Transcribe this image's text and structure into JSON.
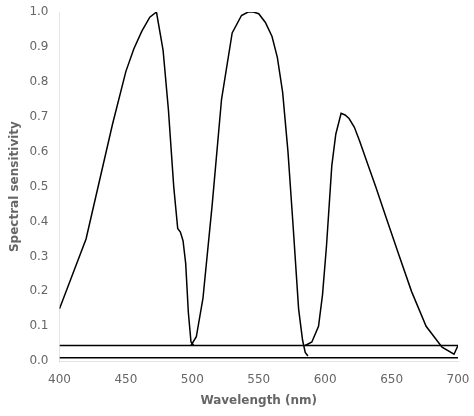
{
  "chart_data": {
    "type": "line",
    "xlabel": "Wavelength (nm)",
    "ylabel": "Spectral sensitivity",
    "xlim": [
      400,
      700
    ],
    "ylim": [
      0,
      1.0
    ],
    "xticks": [
      400,
      450,
      500,
      550,
      600,
      650,
      700
    ],
    "yticks": [
      {
        "value": 0,
        "label": "0.0"
      },
      0.1,
      0.2,
      0.3,
      0.4,
      0.5,
      0.6,
      0.7,
      0.8,
      0.9,
      {
        "value": 1,
        "label": "1.0"
      }
    ],
    "grid": false,
    "series": [
      {
        "color": "#000000",
        "x": [
          400,
          700
        ],
        "values": [
          0.045,
          0.045
        ]
      },
      {
        "color": "#000000",
        "x": [
          400,
          700
        ],
        "values": [
          0.01,
          0.01
        ]
      },
      {
        "color": "#000000",
        "x": [
          400,
          420,
          440,
          450,
          456,
          462,
          468,
          473,
          478,
          482,
          486,
          489,
          491,
          493,
          495,
          497,
          499,
          501
        ],
        "values": [
          0.15,
          0.35,
          0.68,
          0.83,
          0.895,
          0.945,
          0.985,
          1.0,
          0.89,
          0.72,
          0.5,
          0.38,
          0.37,
          0.345,
          0.28,
          0.14,
          0.055,
          0.045
        ]
      },
      {
        "color": "#000000",
        "x": [
          499,
          503,
          508,
          515,
          522,
          530,
          537,
          542,
          546,
          550,
          555,
          560,
          564,
          568,
          572,
          576,
          580,
          583,
          585,
          587
        ],
        "values": [
          0.045,
          0.07,
          0.18,
          0.45,
          0.75,
          0.94,
          0.99,
          1.0,
          1.0,
          0.995,
          0.97,
          0.93,
          0.87,
          0.77,
          0.6,
          0.38,
          0.15,
          0.06,
          0.025,
          0.015
        ]
      },
      {
        "color": "#000000",
        "x": [
          585,
          590,
          595,
          598,
          601,
          605,
          608,
          612,
          615,
          618,
          622,
          626,
          632,
          638,
          646,
          655,
          665,
          676,
          688,
          697,
          700
        ],
        "values": [
          0.045,
          0.055,
          0.1,
          0.19,
          0.33,
          0.56,
          0.65,
          0.71,
          0.705,
          0.695,
          0.67,
          0.63,
          0.565,
          0.5,
          0.41,
          0.31,
          0.2,
          0.1,
          0.04,
          0.02,
          0.045
        ]
      }
    ]
  }
}
